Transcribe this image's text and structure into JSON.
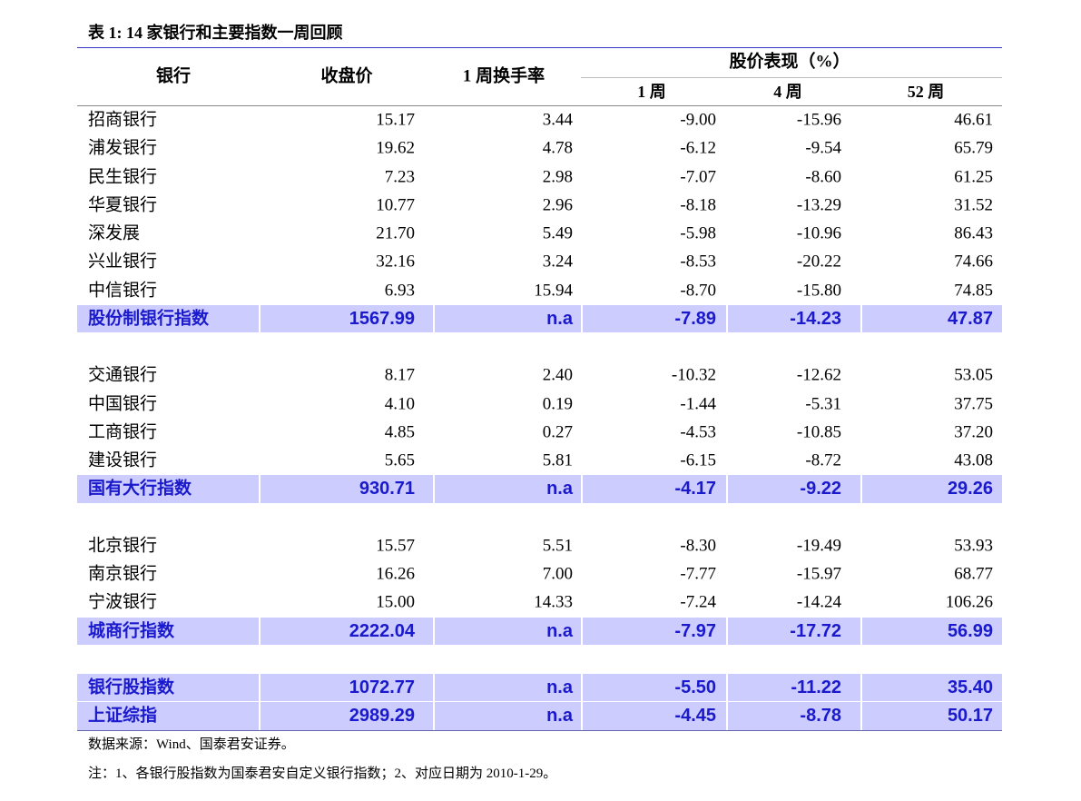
{
  "table": {
    "title": "表 1: 14 家银行和主要指数一周回顾",
    "header": {
      "bank": "银行",
      "close": "收盘价",
      "turnover": "1 周换手率",
      "performance": "股价表现（%）",
      "week1": "1 周",
      "week4": "4 周",
      "week52": "52 周"
    },
    "groups": [
      {
        "rows": [
          [
            "招商银行",
            "15.17",
            "3.44",
            "-9.00",
            "-15.96",
            "46.61"
          ],
          [
            "浦发银行",
            "19.62",
            "4.78",
            "-6.12",
            "-9.54",
            "65.79"
          ],
          [
            "民生银行",
            "7.23",
            "2.98",
            "-7.07",
            "-8.60",
            "61.25"
          ],
          [
            "华夏银行",
            "10.77",
            "2.96",
            "-8.18",
            "-13.29",
            "31.52"
          ],
          [
            "深发展",
            "21.70",
            "5.49",
            "-5.98",
            "-10.96",
            "86.43"
          ],
          [
            "兴业银行",
            "32.16",
            "3.24",
            "-8.53",
            "-20.22",
            "74.66"
          ],
          [
            "中信银行",
            "6.93",
            "15.94",
            "-8.70",
            "-15.80",
            "74.85"
          ]
        ],
        "index": [
          "股份制银行指数",
          "1567.99",
          "n.a",
          "-7.89",
          "-14.23",
          "47.87"
        ]
      },
      {
        "rows": [
          [
            "交通银行",
            "8.17",
            "2.40",
            "-10.32",
            "-12.62",
            "53.05"
          ],
          [
            "中国银行",
            "4.10",
            "0.19",
            "-1.44",
            "-5.31",
            "37.75"
          ],
          [
            "工商银行",
            "4.85",
            "0.27",
            "-4.53",
            "-10.85",
            "37.20"
          ],
          [
            "建设银行",
            "5.65",
            "5.81",
            "-6.15",
            "-8.72",
            "43.08"
          ]
        ],
        "index": [
          "国有大行指数",
          "930.71",
          "n.a",
          "-4.17",
          "-9.22",
          "29.26"
        ]
      },
      {
        "rows": [
          [
            "北京银行",
            "15.57",
            "5.51",
            "-8.30",
            "-19.49",
            "53.93"
          ],
          [
            "南京银行",
            "16.26",
            "7.00",
            "-7.77",
            "-15.97",
            "68.77"
          ],
          [
            "宁波银行",
            "15.00",
            "14.33",
            "-7.24",
            "-14.24",
            "106.26"
          ]
        ],
        "index": [
          "城商行指数",
          "2222.04",
          "n.a",
          "-7.97",
          "-17.72",
          "56.99"
        ]
      }
    ],
    "indices": [
      [
        "银行股指数",
        "1072.77",
        "n.a",
        "-5.50",
        "-11.22",
        "35.40"
      ],
      [
        "上证综指",
        "2989.29",
        "n.a",
        "-4.45",
        "-8.78",
        "50.17"
      ]
    ],
    "notes": [
      "数据来源：Wind、国泰君安证券。",
      "注：1、各银行股指数为国泰君安自定义银行指数；2、对应日期为 2010-1-29。"
    ]
  }
}
